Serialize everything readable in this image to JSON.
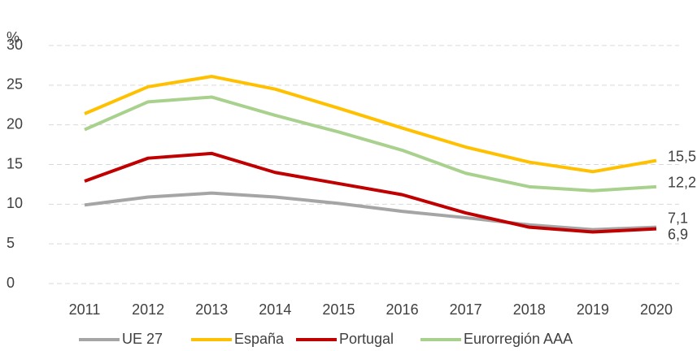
{
  "chart_data": {
    "type": "line",
    "y_label": "%",
    "x": [
      2011,
      2012,
      2013,
      2014,
      2015,
      2016,
      2017,
      2018,
      2019,
      2020
    ],
    "ylim": [
      0,
      30
    ],
    "yticks": [
      0,
      5,
      10,
      15,
      20,
      25,
      30
    ],
    "grid": true,
    "legend": "bottom",
    "series": [
      {
        "name": "UE 27",
        "color": "#a5a5a5",
        "values": [
          9.9,
          10.9,
          11.4,
          10.9,
          10.1,
          9.1,
          8.3,
          7.4,
          6.8,
          7.1
        ],
        "value_labels": [
          null,
          null,
          null,
          null,
          null,
          null,
          null,
          null,
          null,
          "7,1"
        ]
      },
      {
        "name": "España",
        "color": "#ffc000",
        "values": [
          21.4,
          24.8,
          26.1,
          24.5,
          22.1,
          19.6,
          17.2,
          15.3,
          14.1,
          15.5
        ],
        "value_labels": [
          null,
          null,
          null,
          null,
          null,
          null,
          null,
          null,
          null,
          "15,5"
        ]
      },
      {
        "name": "Portugal",
        "color": "#c00000",
        "values": [
          12.9,
          15.8,
          16.4,
          14.0,
          12.6,
          11.2,
          8.9,
          7.1,
          6.5,
          6.9
        ],
        "value_labels": [
          null,
          null,
          null,
          null,
          null,
          null,
          null,
          null,
          null,
          "6,9"
        ]
      },
      {
        "name": "Eurorregión AAA",
        "color": "#a9d18e",
        "values": [
          19.4,
          22.9,
          23.5,
          21.2,
          19.1,
          16.8,
          13.9,
          12.2,
          11.7,
          12.2
        ],
        "value_labels": [
          null,
          null,
          null,
          null,
          null,
          null,
          null,
          null,
          null,
          "12,2"
        ]
      }
    ]
  }
}
